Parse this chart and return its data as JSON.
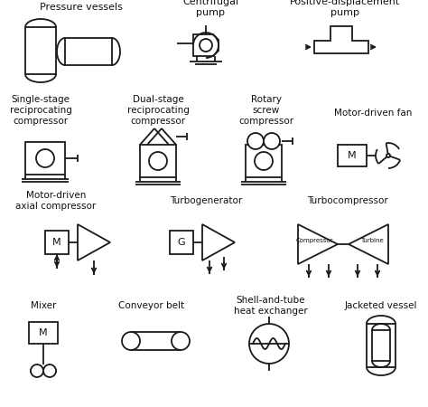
{
  "bg_color": "#ffffff",
  "line_color": "#1a1a1a",
  "title_fontsize": 7.5,
  "symbol_fontsize": 7,
  "labels": {
    "pressure_vessels": "Pressure vessels",
    "centrifugal_pump": "Centrifugal\npump",
    "positive_displacement": "Positive-displacement\npump",
    "single_stage": "Single-stage\nreciprocating\ncompressor",
    "dual_stage": "Dual-stage\nreciprocating\ncompressor",
    "rotary_screw": "Rotary\nscrew\ncompressor",
    "motor_driven_fan": "Motor-driven fan",
    "motor_driven_axial": "Motor-driven\naxial compressor",
    "turbogenerator": "Turbogenerator",
    "turbocompressor": "Turbocompressor",
    "mixer": "Mixer",
    "conveyor_belt": "Conveyor belt",
    "shell_tube": "Shell-and-tube\nheat exchanger",
    "jacketed_vessel": "Jacketed vessel"
  }
}
